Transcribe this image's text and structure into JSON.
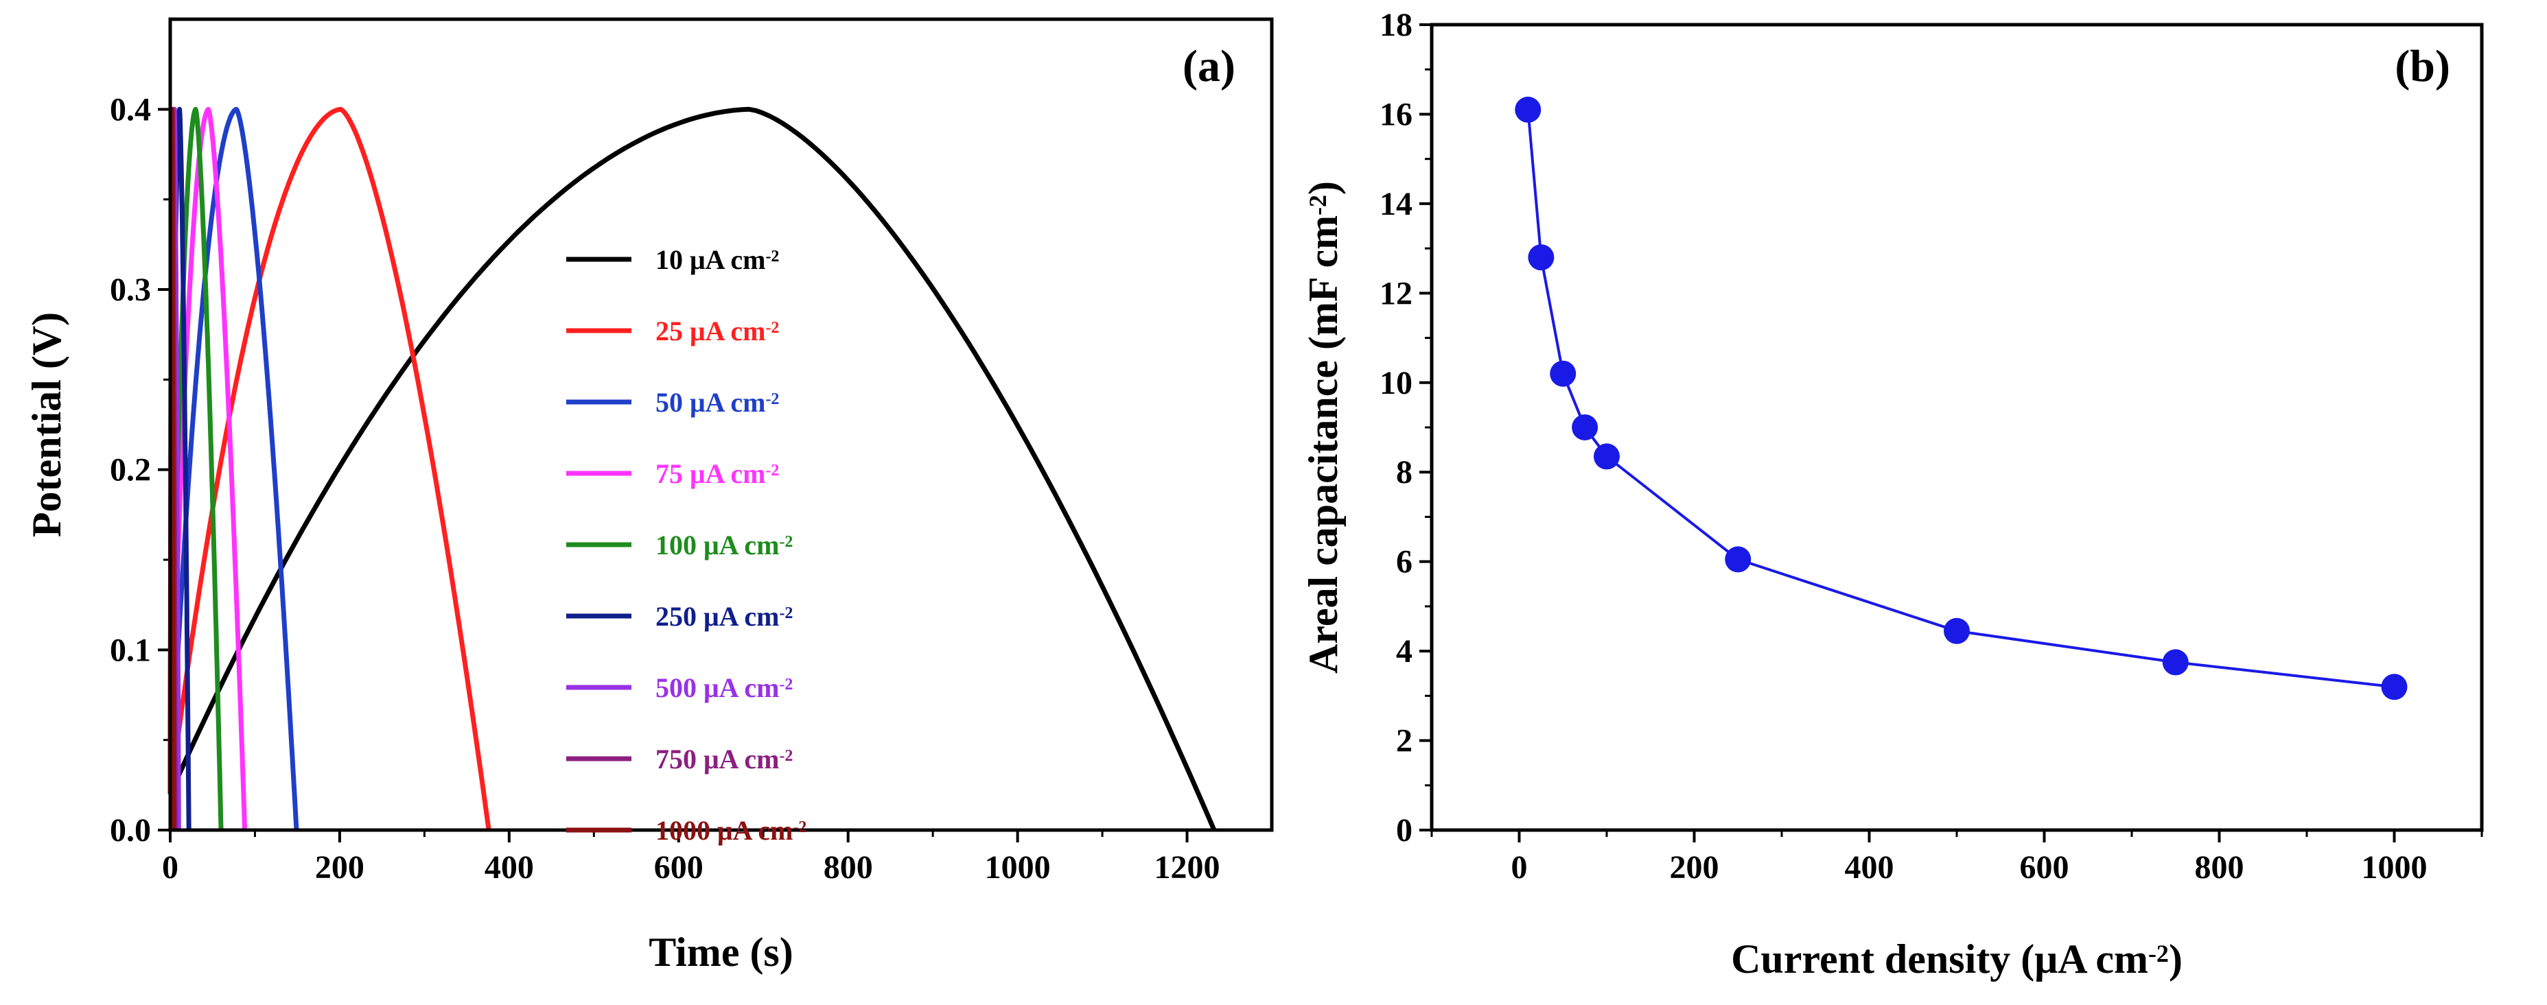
{
  "chart_data": [
    {
      "panel": "a",
      "type": "line",
      "panel_label": "(a)",
      "xlabel": "Time (s)",
      "ylabel": "Potential (V)",
      "xlim": [
        0,
        1300
      ],
      "ylim": [
        0,
        0.45
      ],
      "x_ticks": [
        "0",
        "200",
        "400",
        "600",
        "800",
        "1000",
        "1200"
      ],
      "y_ticks": [
        "0.0",
        "0.1",
        "0.2",
        "0.3",
        "0.4"
      ],
      "series": [
        {
          "name": "10 μA cm",
          "sup": "-2",
          "color": "#000000",
          "peak_time": 683,
          "end_time": 1232,
          "peak_potential": 0.4
        },
        {
          "name": "25 μA cm",
          "sup": "-2",
          "color": "#ff2020",
          "peak_time": 201,
          "end_time": 376,
          "peak_potential": 0.4
        },
        {
          "name": "50 μA cm",
          "sup": "-2",
          "color": "#1f3fc8",
          "peak_time": 78,
          "end_time": 149,
          "peak_potential": 0.4
        },
        {
          "name": "75 μA cm",
          "sup": "-2",
          "color": "#ff33ff",
          "peak_time": 45,
          "end_time": 88,
          "peak_potential": 0.4
        },
        {
          "name": "100 μA cm",
          "sup": "-2",
          "color": "#1e8c1e",
          "peak_time": 30,
          "end_time": 60,
          "peak_potential": 0.4
        },
        {
          "name": "250 μA cm",
          "sup": "-2",
          "color": "#101f8c",
          "peak_time": 11,
          "end_time": 22,
          "peak_potential": 0.4
        },
        {
          "name": "500 μA cm",
          "sup": "-2",
          "color": "#9932e6",
          "peak_time": 5,
          "end_time": 10,
          "peak_potential": 0.4
        },
        {
          "name": "750 μA cm",
          "sup": "-2",
          "color": "#8c1f7f",
          "peak_time": 3,
          "end_time": 6,
          "peak_potential": 0.4
        },
        {
          "name": "1000 μA cm",
          "sup": "-2",
          "color": "#8b1111",
          "peak_time": 2,
          "end_time": 4,
          "peak_potential": 0.4
        }
      ]
    },
    {
      "panel": "b",
      "type": "scatter",
      "panel_label": "(b)",
      "xlabel": "Current density (μA cm",
      "xlabel_sup": "-2",
      "xlabel_end": ")",
      "ylabel": "Areal capacitance (mF cm",
      "ylabel_sup": "-2",
      "ylabel_end": ")",
      "xlim": [
        -100,
        1100
      ],
      "ylim": [
        0,
        18
      ],
      "x_ticks": [
        "0",
        "200",
        "400",
        "600",
        "800",
        "1000"
      ],
      "y_ticks": [
        "0",
        "2",
        "4",
        "6",
        "8",
        "10",
        "12",
        "14",
        "16",
        "18"
      ],
      "color": "#1a1ae6",
      "x": [
        10,
        25,
        50,
        75,
        100,
        250,
        500,
        750,
        1000
      ],
      "y": [
        16.1,
        12.8,
        10.2,
        9.0,
        8.35,
        6.05,
        4.45,
        3.75,
        3.2
      ]
    }
  ]
}
